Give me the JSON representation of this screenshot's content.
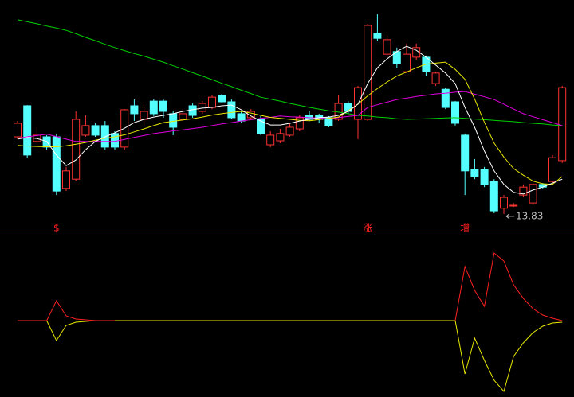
{
  "chart_data": [
    {
      "type": "candlestick",
      "up_color": "#ff3232",
      "down_color": "#54ffff",
      "ylim": [
        13.2,
        20.3
      ],
      "open": [
        16.16,
        17.1,
        16.02,
        16.16,
        16.16,
        14.6,
        14.88,
        16.21,
        16.5,
        16.5,
        16.26,
        15.85,
        17.1,
        16.69,
        17.24,
        17.24,
        16.86,
        16.69,
        17.1,
        16.93,
        17.05,
        17.41,
        17.22,
        16.86,
        16.74,
        16.69,
        15.92,
        16.04,
        16.21,
        16.4,
        16.81,
        16.81,
        16.74,
        16.69,
        17.17,
        16.69,
        16.69,
        19.29,
        18.66,
        18.74,
        18.13,
        18.57,
        18.57,
        17.77,
        17.6,
        17.22,
        16.21,
        15.17,
        15.17,
        14.81,
        14.0,
        14.09,
        14.4,
        14.16,
        14.72,
        14.81,
        15.44
      ],
      "high": [
        16.64,
        17.12,
        16.45,
        16.21,
        16.26,
        15.25,
        16.93,
        16.81,
        16.57,
        16.64,
        16.33,
        17.0,
        17.29,
        17.05,
        17.29,
        17.29,
        16.93,
        17.0,
        17.17,
        17.24,
        17.41,
        17.46,
        17.29,
        16.93,
        17.0,
        16.79,
        16.33,
        16.4,
        16.57,
        16.81,
        16.93,
        16.86,
        16.79,
        17.41,
        17.24,
        17.7,
        19.58,
        19.87,
        19.22,
        18.86,
        18.98,
        18.98,
        18.62,
        18.13,
        17.65,
        17.24,
        16.26,
        15.49,
        15.25,
        14.88,
        14.4,
        14.16,
        14.72,
        14.76,
        14.76,
        15.61,
        17.7
      ],
      "low": [
        16.09,
        15.53,
        15.97,
        15.77,
        14.4,
        14.52,
        14.81,
        16.16,
        16.16,
        15.77,
        15.77,
        15.77,
        16.64,
        16.5,
        16.79,
        16.74,
        16.21,
        16.64,
        16.74,
        16.86,
        17.0,
        17.17,
        16.69,
        16.57,
        16.69,
        16.21,
        15.85,
        15.97,
        16.16,
        16.33,
        16.64,
        16.57,
        16.45,
        16.64,
        16.86,
        16.09,
        16.64,
        19.05,
        18.57,
        18.25,
        18.09,
        18.49,
        18.01,
        17.7,
        17.0,
        16.5,
        14.4,
        14.88,
        14.64,
        13.85,
        13.83,
        14.04,
        14.33,
        14.09,
        14.6,
        14.76,
        15.37
      ],
      "close": [
        16.57,
        15.61,
        16.21,
        15.85,
        14.52,
        15.13,
        16.69,
        16.5,
        16.21,
        15.85,
        15.85,
        16.98,
        16.86,
        16.93,
        16.86,
        16.93,
        16.45,
        16.86,
        16.81,
        17.17,
        17.36,
        17.22,
        16.74,
        16.64,
        16.93,
        16.26,
        16.21,
        16.26,
        16.45,
        16.74,
        16.69,
        16.69,
        16.5,
        17.17,
        16.93,
        17.65,
        19.53,
        19.14,
        19.1,
        18.37,
        18.66,
        18.86,
        18.13,
        18.09,
        17.05,
        16.57,
        15.13,
        14.96,
        14.72,
        13.92,
        14.33,
        14.09,
        14.64,
        14.72,
        14.64,
        15.53,
        17.65
      ],
      "series": [
        {
          "color": "#00d000",
          "values": [
            19.7,
            19.64,
            19.58,
            19.51,
            19.45,
            19.38,
            19.28,
            19.17,
            19.07,
            18.96,
            18.86,
            18.77,
            18.68,
            18.6,
            18.51,
            18.42,
            18.31,
            18.21,
            18.1,
            18.0,
            17.89,
            17.78,
            17.68,
            17.57,
            17.47,
            17.36,
            17.3,
            17.24,
            17.17,
            17.11,
            17.05,
            17.0,
            16.95,
            16.91,
            16.86,
            16.81,
            16.79,
            16.76,
            16.74,
            16.71,
            16.69,
            16.7,
            16.71,
            16.72,
            16.73,
            16.74,
            16.72,
            16.7,
            16.68,
            16.66,
            16.64,
            16.62,
            16.59,
            16.57,
            16.55,
            16.52,
            16.5
          ]
        },
        {
          "color": "#e000e0",
          "values": [
            16.12,
            16.16,
            16.2,
            16.24,
            16.17,
            16.09,
            16.02,
            16.02,
            16.02,
            16.02,
            16.02,
            16.08,
            16.14,
            16.2,
            16.26,
            16.3,
            16.34,
            16.37,
            16.41,
            16.45,
            16.5,
            16.55,
            16.59,
            16.64,
            16.68,
            16.72,
            16.75,
            16.79,
            16.77,
            16.76,
            16.74,
            16.73,
            16.71,
            16.74,
            16.78,
            16.81,
            17.05,
            17.13,
            17.21,
            17.29,
            17.33,
            17.38,
            17.42,
            17.46,
            17.48,
            17.51,
            17.53,
            17.45,
            17.37,
            17.29,
            17.15,
            17.0,
            16.86,
            16.77,
            16.68,
            16.59,
            16.5
          ]
        },
        {
          "color": "#e8e800",
          "values": [
            15.9,
            15.88,
            15.87,
            15.86,
            15.86,
            15.89,
            15.94,
            15.99,
            16.06,
            16.12,
            16.16,
            16.22,
            16.31,
            16.4,
            16.5,
            16.59,
            16.63,
            16.67,
            16.71,
            16.76,
            16.82,
            16.86,
            16.9,
            16.93,
            16.88,
            16.81,
            16.75,
            16.72,
            16.69,
            16.66,
            16.65,
            16.68,
            16.72,
            16.76,
            16.95,
            17.15,
            17.4,
            17.62,
            17.82,
            18.0,
            18.12,
            18.25,
            18.36,
            18.39,
            18.42,
            18.2,
            17.9,
            17.3,
            16.6,
            15.97,
            15.55,
            15.2,
            15.0,
            14.82,
            14.74,
            14.72,
            14.96
          ]
        },
        {
          "color": "#ffffff",
          "values": [
            16.09,
            16.14,
            16.11,
            16.02,
            15.61,
            15.29,
            15.46,
            15.77,
            16.02,
            16.16,
            16.28,
            16.42,
            16.59,
            16.69,
            16.76,
            16.81,
            16.86,
            16.93,
            16.98,
            17.03,
            17.05,
            17.1,
            17.12,
            16.98,
            16.79,
            16.64,
            16.52,
            16.52,
            16.57,
            16.64,
            16.69,
            16.74,
            16.76,
            16.81,
            16.93,
            17.15,
            17.77,
            18.25,
            18.52,
            18.74,
            18.9,
            18.78,
            18.57,
            18.33,
            18.09,
            17.77,
            17.05,
            16.45,
            15.73,
            15.13,
            14.72,
            14.48,
            14.43,
            14.55,
            14.64,
            14.76,
            14.88
          ]
        }
      ],
      "signal_color": "#ff2020",
      "signals": [
        null,
        null,
        null,
        null,
        "$",
        null,
        null,
        null,
        null,
        null,
        null,
        null,
        null,
        null,
        null,
        null,
        null,
        null,
        null,
        null,
        null,
        null,
        null,
        null,
        null,
        null,
        null,
        null,
        null,
        null,
        null,
        null,
        null,
        null,
        null,
        null,
        "涨",
        null,
        null,
        null,
        null,
        null,
        null,
        null,
        null,
        null,
        "增",
        null,
        null,
        null,
        null,
        null,
        null,
        null,
        null,
        null,
        null
      ],
      "annotation_color": "#c0c0c0"
    },
    {
      "type": "line",
      "ylim": [
        -96,
        103
      ],
      "series": [
        {
          "color": "#ff2020",
          "values": [
            0,
            0,
            0,
            0,
            25,
            6,
            2,
            1,
            0,
            0,
            0,
            null,
            null,
            null,
            null,
            null,
            null,
            null,
            null,
            null,
            null,
            null,
            null,
            null,
            null,
            null,
            null,
            null,
            null,
            null,
            null,
            null,
            null,
            null,
            null,
            null,
            null,
            null,
            null,
            null,
            null,
            null,
            null,
            null,
            null,
            0,
            68,
            38,
            18,
            85,
            75,
            45,
            28,
            15,
            7,
            3,
            0
          ]
        },
        {
          "color": "#e8e800",
          "values": [
            0,
            0,
            0,
            0,
            -25,
            -6,
            -2,
            -1,
            0,
            0,
            0,
            0,
            0,
            0,
            0,
            0,
            0,
            0,
            0,
            0,
            0,
            0,
            0,
            0,
            0,
            0,
            0,
            0,
            0,
            0,
            0,
            0,
            0,
            0,
            0,
            0,
            0,
            0,
            0,
            0,
            0,
            0,
            0,
            0,
            0,
            0,
            -67,
            -22,
            -50,
            -75,
            -89,
            -45,
            -28,
            -15,
            -7,
            -3,
            -2
          ]
        }
      ]
    }
  ]
}
